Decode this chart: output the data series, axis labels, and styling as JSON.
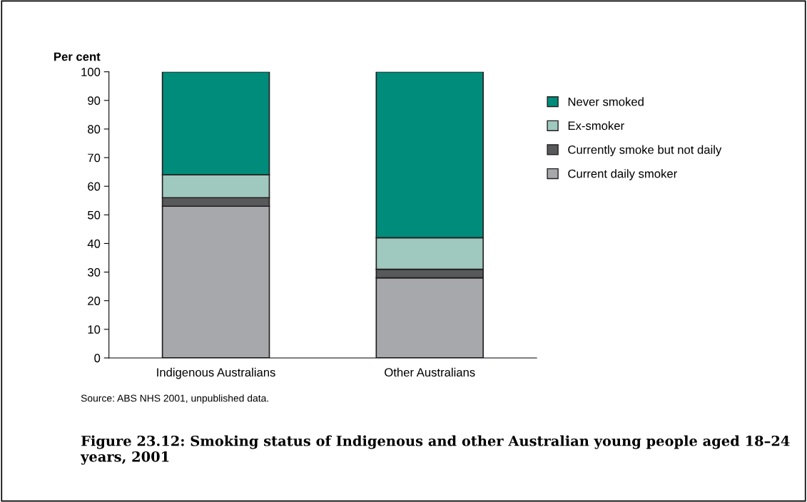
{
  "chart_data": {
    "type": "bar",
    "stacked": true,
    "title": "Figure 23.12: Smoking status of Indigenous and other Australian young people aged 18–24 years, 2001",
    "ylabel": "Per cent",
    "categories": [
      "Indigenous Australians",
      "Other Australians"
    ],
    "series": [
      {
        "name": "Current daily smoker",
        "color": "#a7a8ac",
        "values": [
          53,
          28
        ]
      },
      {
        "name": "Currently smoke but not daily",
        "color": "#58595b",
        "values": [
          3,
          3
        ]
      },
      {
        "name": "Ex-smoker",
        "color": "#9fc8bf",
        "values": [
          8,
          11
        ]
      },
      {
        "name": "Never smoked",
        "color": "#008c7a",
        "values": [
          36,
          58
        ]
      }
    ],
    "ylim": [
      0,
      100
    ],
    "yticks": [
      0,
      10,
      20,
      30,
      40,
      50,
      60,
      70,
      80,
      90,
      100
    ],
    "grid": false,
    "legend": "right",
    "annotations": [
      "Source: ABS NHS 2001, unpublished data."
    ]
  }
}
